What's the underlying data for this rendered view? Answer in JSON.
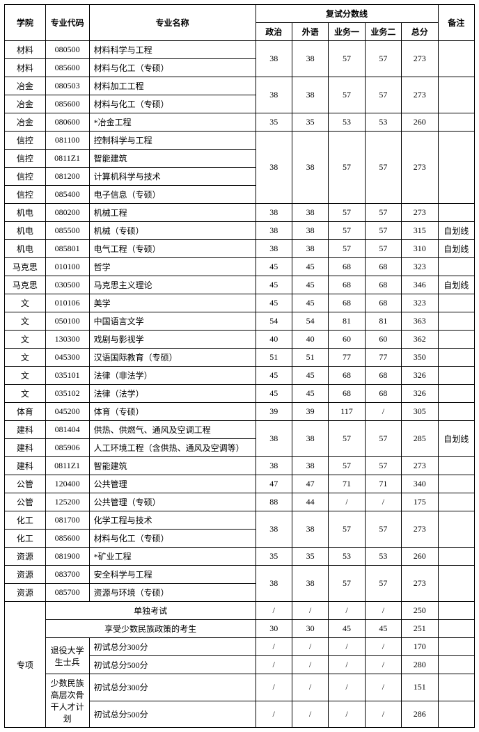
{
  "headers": {
    "college": "学院",
    "code": "专业代码",
    "name": "专业名称",
    "score_group": "复试分数线",
    "politics": "政治",
    "foreign": "外语",
    "subj1": "业务一",
    "subj2": "业务二",
    "total": "总分",
    "remark": "备注"
  },
  "rows": [
    {
      "college": "材料",
      "code": "080500",
      "name": "材料科学与工程",
      "scores": [
        "38",
        "38",
        "57",
        "57",
        "273"
      ],
      "remark": "",
      "rowspan_scores": 2
    },
    {
      "college": "材料",
      "code": "085600",
      "name": "材料与化工（专硕）"
    },
    {
      "college": "冶金",
      "code": "080503",
      "name": "材料加工工程",
      "scores": [
        "38",
        "38",
        "57",
        "57",
        "273"
      ],
      "remark": "",
      "rowspan_scores": 2
    },
    {
      "college": "冶金",
      "code": "085600",
      "name": "材料与化工（专硕）"
    },
    {
      "college": "冶金",
      "code": "080600",
      "name": "*冶金工程",
      "scores": [
        "35",
        "35",
        "53",
        "53",
        "260"
      ],
      "remark": ""
    },
    {
      "college": "信控",
      "code": "081100",
      "name": "控制科学与工程",
      "scores": [
        "38",
        "38",
        "57",
        "57",
        "273"
      ],
      "remark": "",
      "rowspan_scores": 4
    },
    {
      "college": "信控",
      "code": "0811Z1",
      "name": "智能建筑"
    },
    {
      "college": "信控",
      "code": "081200",
      "name": "计算机科学与技术"
    },
    {
      "college": "信控",
      "code": "085400",
      "name": "电子信息（专硕）"
    },
    {
      "college": "机电",
      "code": "080200",
      "name": "机械工程",
      "scores": [
        "38",
        "38",
        "57",
        "57",
        "273"
      ],
      "remark": ""
    },
    {
      "college": "机电",
      "code": "085500",
      "name": "机械（专硕）",
      "scores": [
        "38",
        "38",
        "57",
        "57",
        "315"
      ],
      "remark": "自划线"
    },
    {
      "college": "机电",
      "code": "085801",
      "name": "电气工程（专硕）",
      "scores": [
        "38",
        "38",
        "57",
        "57",
        "310"
      ],
      "remark": "自划线"
    },
    {
      "college": "马克思",
      "code": "010100",
      "name": "哲学",
      "scores": [
        "45",
        "45",
        "68",
        "68",
        "323"
      ],
      "remark": ""
    },
    {
      "college": "马克思",
      "code": "030500",
      "name": "马克思主义理论",
      "scores": [
        "45",
        "45",
        "68",
        "68",
        "346"
      ],
      "remark": "自划线"
    },
    {
      "college": "文",
      "code": "010106",
      "name": "美学",
      "scores": [
        "45",
        "45",
        "68",
        "68",
        "323"
      ],
      "remark": ""
    },
    {
      "college": "文",
      "code": "050100",
      "name": "中国语言文学",
      "scores": [
        "54",
        "54",
        "81",
        "81",
        "363"
      ],
      "remark": ""
    },
    {
      "college": "文",
      "code": "130300",
      "name": "戏剧与影视学",
      "scores": [
        "40",
        "40",
        "60",
        "60",
        "362"
      ],
      "remark": ""
    },
    {
      "college": "文",
      "code": "045300",
      "name": "汉语国际教育（专硕）",
      "scores": [
        "51",
        "51",
        "77",
        "77",
        "350"
      ],
      "remark": ""
    },
    {
      "college": "文",
      "code": "035101",
      "name": "法律（非法学）",
      "scores": [
        "45",
        "45",
        "68",
        "68",
        "326"
      ],
      "remark": ""
    },
    {
      "college": "文",
      "code": "035102",
      "name": "法律（法学）",
      "scores": [
        "45",
        "45",
        "68",
        "68",
        "326"
      ],
      "remark": ""
    },
    {
      "college": "体育",
      "code": "045200",
      "name": "体育（专硕）",
      "scores": [
        "39",
        "39",
        "117",
        "/",
        "305"
      ],
      "remark": ""
    },
    {
      "college": "建科",
      "code": "081404",
      "name": "供热、供燃气、通风及空调工程",
      "scores": [
        "38",
        "38",
        "57",
        "57",
        "285"
      ],
      "remark": "自划线",
      "rowspan_scores": 2
    },
    {
      "college": "建科",
      "code": "085906",
      "name": "人工环境工程（含供热、通风及空调等）"
    },
    {
      "college": "建科",
      "code": "0811Z1",
      "name": "智能建筑",
      "scores": [
        "38",
        "38",
        "57",
        "57",
        "273"
      ],
      "remark": ""
    },
    {
      "college": "公管",
      "code": "120400",
      "name": "公共管理",
      "scores": [
        "47",
        "47",
        "71",
        "71",
        "340"
      ],
      "remark": ""
    },
    {
      "college": "公管",
      "code": "125200",
      "name": "公共管理（专硕）",
      "scores": [
        "88",
        "44",
        "/",
        "/",
        "175"
      ],
      "remark": ""
    },
    {
      "college": "化工",
      "code": "081700",
      "name": "化学工程与技术",
      "scores": [
        "38",
        "38",
        "57",
        "57",
        "273"
      ],
      "remark": "",
      "rowspan_scores": 2
    },
    {
      "college": "化工",
      "code": "085600",
      "name": "材料与化工（专硕）"
    },
    {
      "college": "资源",
      "code": "081900",
      "name": "*矿业工程",
      "scores": [
        "35",
        "35",
        "53",
        "53",
        "260"
      ],
      "remark": ""
    },
    {
      "college": "资源",
      "code": "083700",
      "name": "安全科学与工程",
      "scores": [
        "38",
        "38",
        "57",
        "57",
        "273"
      ],
      "remark": "",
      "rowspan_scores": 2
    },
    {
      "college": "资源",
      "code": "085700",
      "name": "资源与环境（专硕）"
    }
  ],
  "special": {
    "label": "专项",
    "row1": {
      "name": "单独考试",
      "scores": [
        "/",
        "/",
        "/",
        "/",
        "250"
      ],
      "remark": ""
    },
    "row2": {
      "name": "享受少数民族政策的考生",
      "scores": [
        "30",
        "30",
        "45",
        "45",
        "251"
      ],
      "remark": ""
    },
    "group1": {
      "label": "退役大学生士兵",
      "sub": [
        {
          "name": "初试总分300分",
          "scores": [
            "/",
            "/",
            "/",
            "/",
            "170"
          ],
          "remark": ""
        },
        {
          "name": "初试总分500分",
          "scores": [
            "/",
            "/",
            "/",
            "/",
            "280"
          ],
          "remark": ""
        }
      ]
    },
    "group2": {
      "label": "少数民族高层次骨干人才计划",
      "sub": [
        {
          "name": "初试总分300分",
          "scores": [
            "/",
            "/",
            "/",
            "/",
            "151"
          ],
          "remark": ""
        },
        {
          "name": "初试总分500分",
          "scores": [
            "/",
            "/",
            "/",
            "/",
            "286"
          ],
          "remark": ""
        }
      ]
    }
  }
}
